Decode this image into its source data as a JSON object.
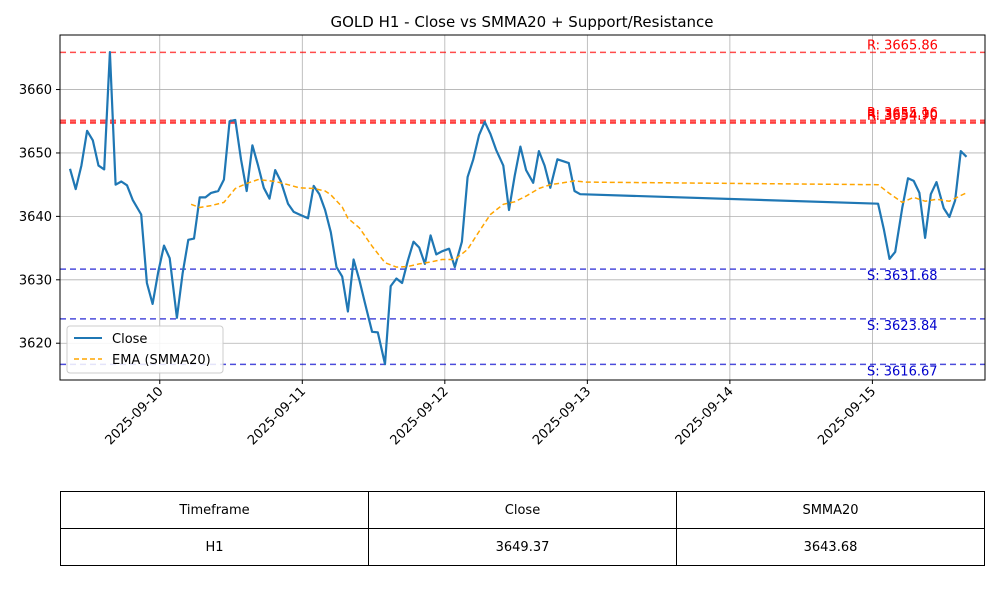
{
  "chart_data": {
    "type": "line",
    "title": "GOLD H1 - Close vs SMMA20 + Support/Resistance",
    "xlabel": "",
    "ylabel": "",
    "xlim": [
      -0.7,
      5.79
    ],
    "ylim": [
      3614.2,
      3668.6
    ],
    "grid": true,
    "legend_position": "lower-left",
    "x_ticks": [
      {
        "label": "2025-09-10",
        "value": 0
      },
      {
        "label": "2025-09-11",
        "value": 1
      },
      {
        "label": "2025-09-12",
        "value": 2
      },
      {
        "label": "2025-09-13",
        "value": 3
      },
      {
        "label": "2025-09-14",
        "value": 4
      },
      {
        "label": "2025-09-15",
        "value": 5
      }
    ],
    "y_ticks": [
      3620,
      3630,
      3640,
      3650,
      3660
    ],
    "series": [
      {
        "name": "Close",
        "color": "#1f77b4",
        "style": "solid",
        "points": [
          [
            -0.63,
            3647.5
          ],
          [
            -0.59,
            3644.3
          ],
          [
            -0.55,
            3648.0
          ],
          [
            -0.51,
            3653.5
          ],
          [
            -0.47,
            3652.0
          ],
          [
            -0.43,
            3648.0
          ],
          [
            -0.39,
            3647.4
          ],
          [
            -0.35,
            3665.9
          ],
          [
            -0.31,
            3645.0
          ],
          [
            -0.27,
            3645.5
          ],
          [
            -0.23,
            3644.9
          ],
          [
            -0.19,
            3642.6
          ],
          [
            -0.13,
            3640.3
          ],
          [
            -0.09,
            3629.5
          ],
          [
            -0.05,
            3626.2
          ],
          [
            -0.01,
            3631.3
          ],
          [
            0.03,
            3635.4
          ],
          [
            0.07,
            3633.4
          ],
          [
            0.12,
            3624.0
          ],
          [
            0.16,
            3631.0
          ],
          [
            0.2,
            3636.3
          ],
          [
            0.24,
            3636.5
          ],
          [
            0.28,
            3643.0
          ],
          [
            0.32,
            3643.0
          ],
          [
            0.36,
            3643.7
          ],
          [
            0.41,
            3644.0
          ],
          [
            0.45,
            3645.8
          ],
          [
            0.49,
            3655.0
          ],
          [
            0.53,
            3655.2
          ],
          [
            0.57,
            3649.0
          ],
          [
            0.61,
            3644.0
          ],
          [
            0.65,
            3651.2
          ],
          [
            0.69,
            3648.0
          ],
          [
            0.73,
            3644.5
          ],
          [
            0.77,
            3642.8
          ],
          [
            0.81,
            3647.3
          ],
          [
            0.85,
            3645.5
          ],
          [
            0.9,
            3642.0
          ],
          [
            0.94,
            3640.7
          ],
          [
            0.98,
            3640.3
          ],
          [
            1.04,
            3639.7
          ],
          [
            1.08,
            3644.8
          ],
          [
            1.12,
            3643.5
          ],
          [
            1.16,
            3641.0
          ],
          [
            1.2,
            3637.5
          ],
          [
            1.24,
            3632.0
          ],
          [
            1.28,
            3630.5
          ],
          [
            1.32,
            3625.0
          ],
          [
            1.36,
            3633.2
          ],
          [
            1.4,
            3630.0
          ],
          [
            1.44,
            3626.3
          ],
          [
            1.49,
            3621.8
          ],
          [
            1.53,
            3621.7
          ],
          [
            1.58,
            3616.7
          ],
          [
            1.62,
            3629.0
          ],
          [
            1.66,
            3630.2
          ],
          [
            1.7,
            3629.5
          ],
          [
            1.74,
            3633.0
          ],
          [
            1.78,
            3636.0
          ],
          [
            1.82,
            3635.1
          ],
          [
            1.86,
            3632.5
          ],
          [
            1.9,
            3637.0
          ],
          [
            1.94,
            3634.0
          ],
          [
            1.98,
            3634.5
          ],
          [
            2.03,
            3634.9
          ],
          [
            2.07,
            3632.0
          ],
          [
            2.12,
            3636.0
          ],
          [
            2.16,
            3646.2
          ],
          [
            2.2,
            3649.0
          ],
          [
            2.24,
            3652.8
          ],
          [
            2.28,
            3654.9
          ],
          [
            2.32,
            3653.0
          ],
          [
            2.36,
            3650.5
          ],
          [
            2.41,
            3648.0
          ],
          [
            2.45,
            3641.0
          ],
          [
            2.49,
            3646.4
          ],
          [
            2.53,
            3651.0
          ],
          [
            2.57,
            3647.3
          ],
          [
            2.62,
            3645.3
          ],
          [
            2.66,
            3650.3
          ],
          [
            2.7,
            3648.0
          ],
          [
            2.74,
            3644.5
          ],
          [
            2.79,
            3649.0
          ],
          [
            2.83,
            3648.7
          ],
          [
            2.87,
            3648.4
          ],
          [
            2.91,
            3644.0
          ],
          [
            2.95,
            3643.5
          ],
          [
            5.04,
            3642.0
          ],
          [
            5.08,
            3638.0
          ],
          [
            5.12,
            3633.3
          ],
          [
            5.16,
            3634.4
          ],
          [
            5.21,
            3641.4
          ],
          [
            5.25,
            3646.0
          ],
          [
            5.29,
            3645.6
          ],
          [
            5.33,
            3643.7
          ],
          [
            5.37,
            3636.6
          ],
          [
            5.41,
            3643.5
          ],
          [
            5.45,
            3645.4
          ],
          [
            5.5,
            3641.3
          ],
          [
            5.54,
            3639.9
          ],
          [
            5.58,
            3642.5
          ],
          [
            5.62,
            3650.3
          ],
          [
            5.66,
            3649.4
          ]
        ]
      },
      {
        "name": "EMA (SMMA20)",
        "color": "#ffa500",
        "style": "dashed",
        "points": [
          [
            0.22,
            3641.9
          ],
          [
            0.28,
            3641.4
          ],
          [
            0.36,
            3641.7
          ],
          [
            0.45,
            3642.2
          ],
          [
            0.53,
            3644.4
          ],
          [
            0.61,
            3645.2
          ],
          [
            0.69,
            3645.8
          ],
          [
            0.81,
            3645.5
          ],
          [
            0.9,
            3645.0
          ],
          [
            0.98,
            3644.5
          ],
          [
            1.08,
            3644.4
          ],
          [
            1.16,
            3644.0
          ],
          [
            1.2,
            3643.4
          ],
          [
            1.28,
            3641.5
          ],
          [
            1.32,
            3639.7
          ],
          [
            1.4,
            3638.2
          ],
          [
            1.49,
            3635.3
          ],
          [
            1.58,
            3632.7
          ],
          [
            1.66,
            3632.0
          ],
          [
            1.74,
            3632.1
          ],
          [
            1.82,
            3632.5
          ],
          [
            1.9,
            3632.8
          ],
          [
            1.98,
            3633.2
          ],
          [
            2.07,
            3633.2
          ],
          [
            2.16,
            3634.8
          ],
          [
            2.24,
            3637.6
          ],
          [
            2.32,
            3640.3
          ],
          [
            2.41,
            3641.9
          ],
          [
            2.49,
            3642.3
          ],
          [
            2.57,
            3643.2
          ],
          [
            2.66,
            3644.4
          ],
          [
            2.74,
            3645.0
          ],
          [
            2.83,
            3645.3
          ],
          [
            2.91,
            3645.6
          ],
          [
            2.99,
            3645.4
          ],
          [
            5.04,
            3645.0
          ],
          [
            5.12,
            3643.6
          ],
          [
            5.21,
            3642.2
          ],
          [
            5.29,
            3643.0
          ],
          [
            5.37,
            3642.4
          ],
          [
            5.45,
            3642.7
          ],
          [
            5.54,
            3642.4
          ],
          [
            5.62,
            3643.3
          ],
          [
            5.66,
            3643.7
          ]
        ]
      }
    ],
    "levels": [
      {
        "type": "resistance",
        "value": 3665.86,
        "label": "R: 3665.86",
        "color": "#ff0000"
      },
      {
        "type": "resistance",
        "value": 3655.16,
        "label": "R: 3655.16",
        "color": "#ff0000"
      },
      {
        "type": "resistance",
        "value": 3654.9,
        "label": "R: 3654.90",
        "color": "#ff0000"
      },
      {
        "type": "resistance",
        "value": 3654.7,
        "label": "R: 3654.70",
        "color": "#ff0000"
      },
      {
        "type": "support",
        "value": 3631.68,
        "label": "S: 3631.68",
        "color": "#0000cc"
      },
      {
        "type": "support",
        "value": 3623.84,
        "label": "S: 3623.84",
        "color": "#0000cc"
      },
      {
        "type": "support",
        "value": 3616.67,
        "label": "S: 3616.67",
        "color": "#0000cc"
      }
    ]
  },
  "summary_table": {
    "headers": [
      "Timeframe",
      "Close",
      "SMMA20"
    ],
    "row": [
      "H1",
      "3649.37",
      "3643.68"
    ]
  }
}
